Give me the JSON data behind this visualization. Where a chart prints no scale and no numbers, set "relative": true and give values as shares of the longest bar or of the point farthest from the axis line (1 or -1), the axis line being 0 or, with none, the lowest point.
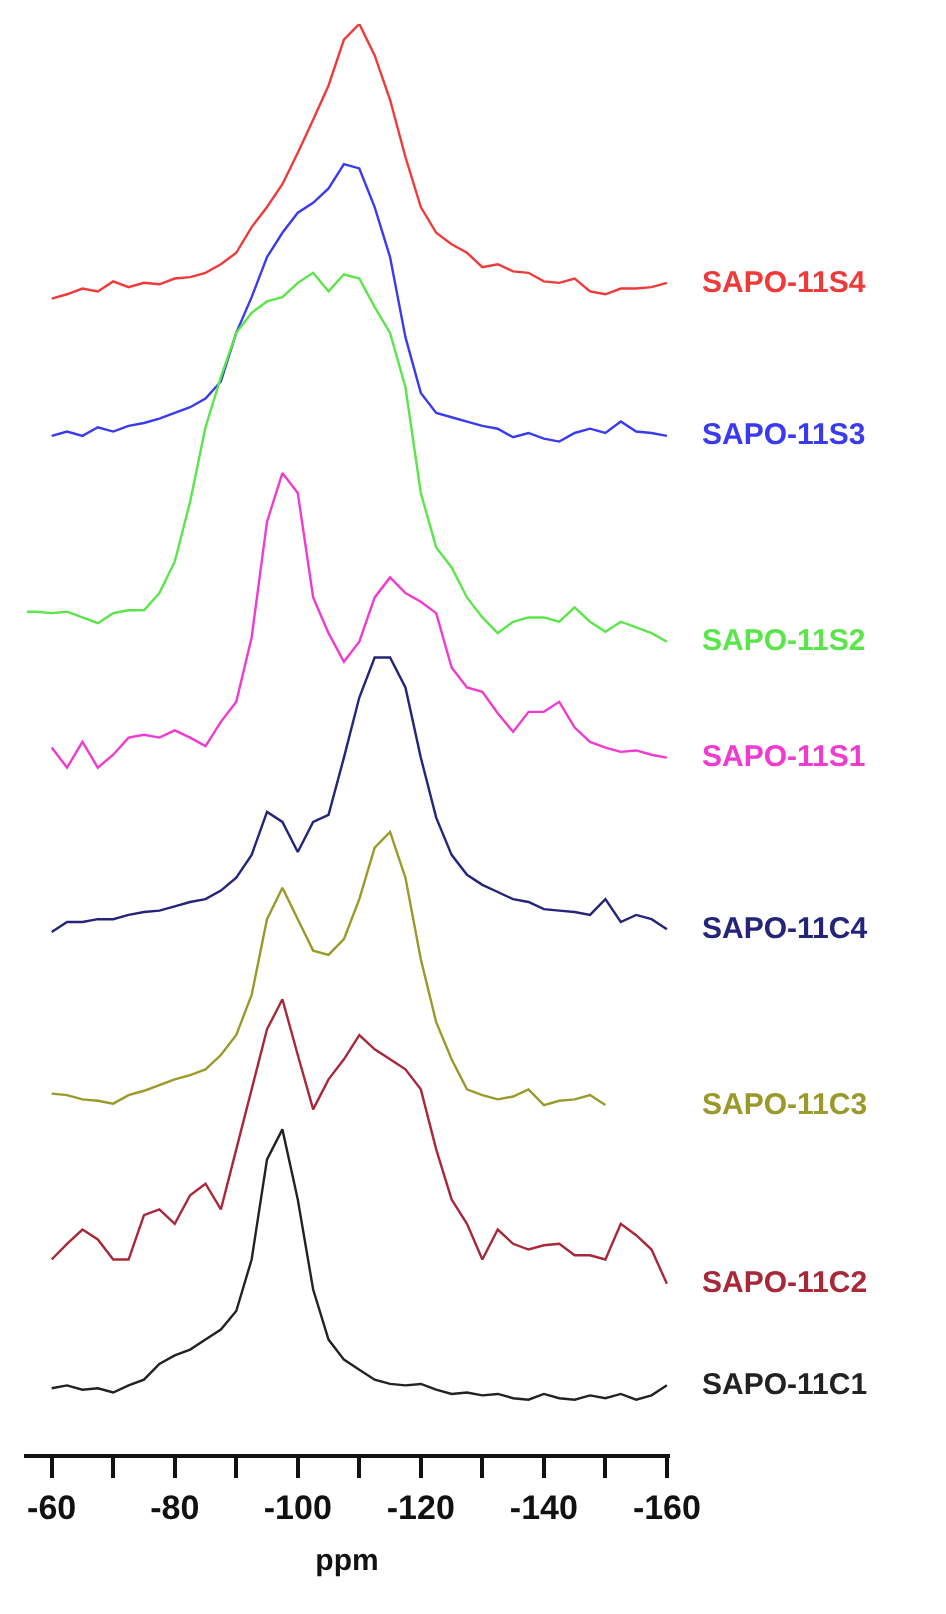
{
  "chart_data": {
    "type": "line",
    "relative": true,
    "xlabel": "ppm",
    "xlim": [
      -55.5,
      -160.5
    ],
    "xticks": [
      -60,
      {
        "value": -70,
        "label": null
      },
      -80,
      {
        "value": -90,
        "label": null
      },
      -100,
      {
        "value": -110,
        "label": null
      },
      -120,
      {
        "value": -130,
        "label": null
      },
      -140,
      {
        "value": -150,
        "label": null
      },
      -160
    ],
    "x": [
      -60,
      -62.5,
      -65,
      -67.5,
      -70,
      -72.5,
      -75,
      -77.5,
      -80,
      -82.5,
      -85,
      -87.5,
      -90,
      -92.5,
      -95,
      -97.5,
      -100,
      -102.5,
      -105,
      -107.5,
      -110,
      -112.5,
      -115,
      -117.5,
      -120,
      -122.5,
      -125,
      -127.5,
      -130,
      -132.5,
      -135,
      -137.5,
      -140,
      -142.5,
      -145,
      -147.5,
      -150,
      -152.5,
      -155,
      -157.5,
      -160
    ],
    "legend": false,
    "marker": "none",
    "line_style": "solid",
    "series": [
      {
        "name": "SAPO-11S4",
        "color": "#f03a3a",
        "values": [
          0.808,
          0.811,
          0.815,
          0.813,
          0.82,
          0.816,
          0.819,
          0.818,
          0.822,
          0.823,
          0.826,
          0.832,
          0.84,
          0.858,
          0.872,
          0.888,
          0.91,
          0.933,
          0.957,
          0.989,
          1.0,
          0.978,
          0.947,
          0.907,
          0.872,
          0.854,
          0.846,
          0.84,
          0.83,
          0.832,
          0.827,
          0.826,
          0.82,
          0.819,
          0.822,
          0.813,
          0.811,
          0.815,
          0.815,
          0.816,
          0.819
        ]
      },
      {
        "name": "SAPO-11S3",
        "color": "#3a3af0",
        "values": [
          0.712,
          0.715,
          0.712,
          0.718,
          0.715,
          0.719,
          0.721,
          0.724,
          0.728,
          0.732,
          0.738,
          0.75,
          0.784,
          0.809,
          0.837,
          0.854,
          0.868,
          0.875,
          0.885,
          0.902,
          0.899,
          0.872,
          0.837,
          0.781,
          0.742,
          0.728,
          0.725,
          0.722,
          0.719,
          0.717,
          0.711,
          0.714,
          0.71,
          0.708,
          0.714,
          0.717,
          0.714,
          0.722,
          0.715,
          0.714,
          0.712
        ]
      },
      {
        "name": "SAPO-11S2",
        "color": "#5ae64a",
        "x": [
          -56,
          -57.5,
          -60,
          -62.5,
          -65,
          -67.5,
          -70,
          -72.5,
          -75,
          -77.5,
          -80,
          -82.5,
          -85,
          -87.5,
          -90,
          -92.5,
          -95,
          -97.5,
          -100,
          -102.5,
          -105,
          -107.5,
          -110,
          -112.5,
          -115,
          -117.5,
          -120,
          -122.5,
          -125,
          -127.5,
          -130,
          -132.5,
          -135,
          -137.5,
          -140,
          -142.5,
          -145,
          -147.5,
          -150,
          -152.5,
          -155,
          -157.5,
          -160
        ],
        "values": [
          0.589,
          0.589,
          0.588,
          0.589,
          0.585,
          0.581,
          0.588,
          0.59,
          0.59,
          0.602,
          0.624,
          0.666,
          0.718,
          0.753,
          0.784,
          0.798,
          0.806,
          0.809,
          0.819,
          0.826,
          0.813,
          0.825,
          0.822,
          0.802,
          0.784,
          0.746,
          0.672,
          0.634,
          0.62,
          0.599,
          0.585,
          0.574,
          0.582,
          0.585,
          0.585,
          0.582,
          0.592,
          0.582,
          0.575,
          0.582,
          0.578,
          0.574,
          0.568
        ]
      },
      {
        "name": "SAPO-11S1",
        "color": "#f03ad0",
        "values": [
          0.494,
          0.48,
          0.498,
          0.48,
          0.489,
          0.501,
          0.503,
          0.501,
          0.506,
          0.501,
          0.495,
          0.512,
          0.526,
          0.571,
          0.652,
          0.686,
          0.672,
          0.599,
          0.574,
          0.554,
          0.568,
          0.599,
          0.613,
          0.602,
          0.596,
          0.588,
          0.55,
          0.536,
          0.533,
          0.518,
          0.505,
          0.519,
          0.519,
          0.526,
          0.508,
          0.498,
          0.494,
          0.491,
          0.492,
          0.489,
          0.487
        ]
      },
      {
        "name": "SAPO-11C4",
        "color": "#24247a",
        "values": [
          0.365,
          0.372,
          0.372,
          0.374,
          0.374,
          0.377,
          0.379,
          0.38,
          0.383,
          0.386,
          0.388,
          0.394,
          0.403,
          0.419,
          0.449,
          0.442,
          0.421,
          0.442,
          0.447,
          0.487,
          0.529,
          0.557,
          0.557,
          0.536,
          0.487,
          0.445,
          0.419,
          0.405,
          0.398,
          0.393,
          0.388,
          0.386,
          0.381,
          0.38,
          0.379,
          0.377,
          0.388,
          0.372,
          0.377,
          0.374,
          0.367
        ]
      },
      {
        "name": "SAPO-11C3",
        "color": "#9a9a2a",
        "values": [
          0.252,
          0.251,
          0.248,
          0.247,
          0.245,
          0.251,
          0.254,
          0.258,
          0.262,
          0.265,
          0.269,
          0.279,
          0.293,
          0.321,
          0.374,
          0.396,
          0.374,
          0.352,
          0.349,
          0.36,
          0.388,
          0.424,
          0.435,
          0.403,
          0.346,
          0.302,
          0.276,
          0.255,
          0.251,
          0.248,
          0.25,
          0.255,
          0.244,
          0.247,
          0.248,
          0.251,
          0.244,
          null,
          null,
          null,
          null
        ]
      },
      {
        "name": "SAPO-11C2",
        "color": "#a8283a",
        "values": [
          0.136,
          0.147,
          0.157,
          0.15,
          0.136,
          0.136,
          0.167,
          0.171,
          0.161,
          0.181,
          0.189,
          0.171,
          0.213,
          0.255,
          0.297,
          0.318,
          0.279,
          0.241,
          0.262,
          0.276,
          0.293,
          0.283,
          0.276,
          0.269,
          0.255,
          0.213,
          0.178,
          0.161,
          0.136,
          0.157,
          0.147,
          0.143,
          0.146,
          0.147,
          0.139,
          0.139,
          0.136,
          0.161,
          0.153,
          0.143,
          0.119
        ]
      },
      {
        "name": "SAPO-11C1",
        "color": "#222222",
        "values": [
          0.046,
          0.048,
          0.045,
          0.046,
          0.043,
          0.048,
          0.052,
          0.063,
          0.069,
          0.073,
          0.08,
          0.087,
          0.1,
          0.136,
          0.206,
          0.227,
          0.178,
          0.115,
          0.08,
          0.066,
          0.059,
          0.052,
          0.049,
          0.048,
          0.049,
          0.045,
          0.042,
          0.043,
          0.041,
          0.042,
          0.039,
          0.038,
          0.042,
          0.039,
          0.038,
          0.041,
          0.039,
          0.042,
          0.038,
          0.041,
          0.048
        ]
      }
    ]
  }
}
